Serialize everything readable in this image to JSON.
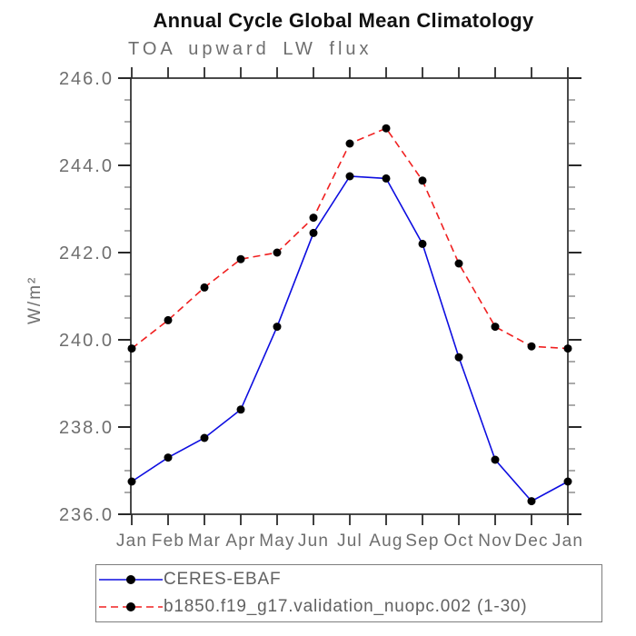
{
  "page": {
    "background": "#ffffff"
  },
  "chart_data": {
    "type": "line",
    "title": "Annual Cycle Global Mean Climatology",
    "subtitle": "TOA upward LW flux",
    "ylabel": "W/m²",
    "xlabel": "",
    "categories": [
      "Jan",
      "Feb",
      "Mar",
      "Apr",
      "May",
      "Jun",
      "Jul",
      "Aug",
      "Sep",
      "Oct",
      "Nov",
      "Dec",
      "Jan"
    ],
    "ylim": [
      236.0,
      246.0
    ],
    "ytick_major_step": 2.0,
    "ytick_minor_step": 0.5,
    "ytick_labels": [
      "236.0",
      "238.0",
      "240.0",
      "242.0",
      "244.0",
      "246.0"
    ],
    "grid": false,
    "legend_position": "bottom",
    "marker_color": "#000000",
    "axis_color": "#2a2a2a",
    "minor_tick_color": "#8f8f8f",
    "series": [
      {
        "name": "CERES-EBAF",
        "color": "#0d0de0",
        "style": "solid",
        "dash": "none",
        "values": [
          236.75,
          237.3,
          237.75,
          238.4,
          240.3,
          242.45,
          243.75,
          243.7,
          242.2,
          239.6,
          237.25,
          236.3,
          236.75
        ]
      },
      {
        "name": "b1850.f19_g17.validation_nuopc.002 (1-30)",
        "color": "#f02020",
        "style": "dashed",
        "dash": "8,5",
        "values": [
          239.8,
          240.45,
          241.2,
          241.85,
          242.0,
          242.8,
          244.5,
          244.85,
          243.65,
          241.75,
          240.3,
          239.85,
          239.8
        ]
      }
    ]
  }
}
